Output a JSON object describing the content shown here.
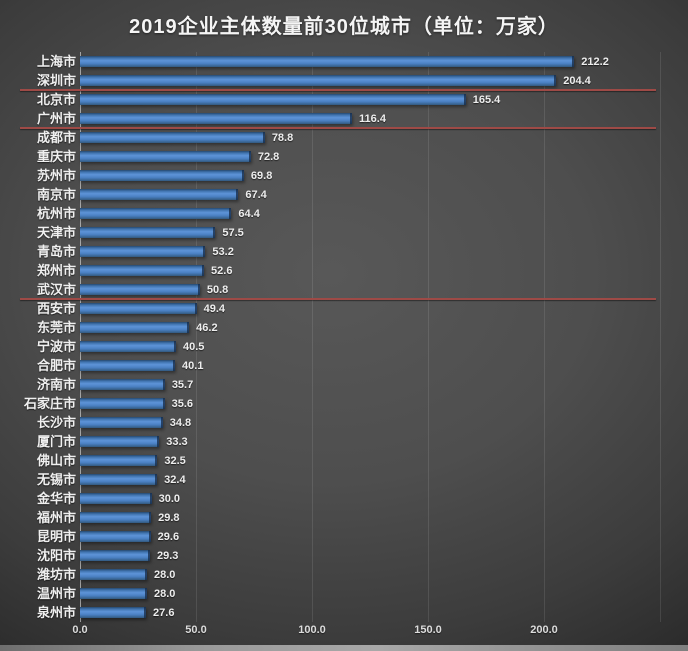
{
  "title": "2019企业主体数量前30位城市（单位：万家）",
  "chart_data": {
    "type": "bar",
    "orientation": "horizontal",
    "title": "2019企业主体数量前30位城市（单位：万家）",
    "unit": "万家",
    "categories": [
      "上海市",
      "深圳市",
      "北京市",
      "广州市",
      "成都市",
      "重庆市",
      "苏州市",
      "南京市",
      "杭州市",
      "天津市",
      "青岛市",
      "郑州市",
      "武汉市",
      "西安市",
      "东莞市",
      "宁波市",
      "合肥市",
      "济南市",
      "石家庄市",
      "长沙市",
      "厦门市",
      "佛山市",
      "无锡市",
      "金华市",
      "福州市",
      "昆明市",
      "沈阳市",
      "潍坊市",
      "温州市",
      "泉州市"
    ],
    "values": [
      212.2,
      204.4,
      165.4,
      116.4,
      78.8,
      72.8,
      69.8,
      67.4,
      64.4,
      57.5,
      53.2,
      52.6,
      50.8,
      49.4,
      46.2,
      40.5,
      40.1,
      35.7,
      35.6,
      34.8,
      33.3,
      32.5,
      32.4,
      30.0,
      29.8,
      29.6,
      29.3,
      28.0,
      28.0,
      27.6
    ],
    "value_labels": [
      "212.2",
      "204.4",
      "165.4",
      "116.4",
      "78.8",
      "72.8",
      "69.8",
      "67.4",
      "64.4",
      "57.5",
      "53.2",
      "52.6",
      "50.8",
      "49.4",
      "46.2",
      "40.5",
      "40.1",
      "35.7",
      "35.6",
      "34.8",
      "33.3",
      "32.5",
      "32.4",
      "30.0",
      "29.8",
      "29.6",
      "29.3",
      "28.0",
      "28.0",
      "27.6"
    ],
    "xlabel": "",
    "ylabel": "",
    "xlim": [
      0,
      250
    ],
    "x_tick_values": [
      0,
      50,
      100,
      150,
      200
    ],
    "x_tick_labels": [
      "0.0",
      "50.0",
      "100.0",
      "150.0",
      "200.0"
    ],
    "grid_values": [
      0,
      50,
      100,
      150,
      200,
      250
    ],
    "grid": true,
    "legend": false,
    "separators_after": [
      "深圳市",
      "广州市",
      "武汉市"
    ],
    "colors": {
      "bar": "#4d82c4",
      "bar_edge_dark": "#24476d",
      "separator": "#9e4a46",
      "title_text": "#f5f5f5",
      "label_text": "#f0f0f0",
      "tick_text": "#dcdcdc",
      "background_center": "#585858",
      "background_edge": "#232323",
      "bottom_strip": "#919191"
    }
  }
}
